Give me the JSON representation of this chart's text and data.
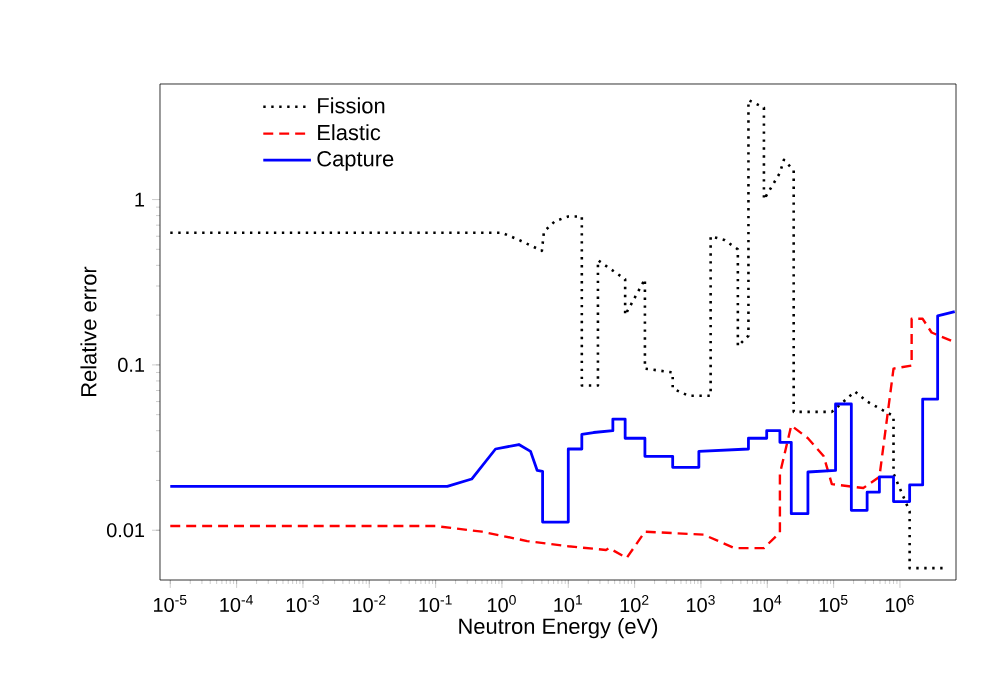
{
  "chart_data": {
    "type": "line",
    "xlabel": "Neutron Energy (eV)",
    "ylabel": "Relative error",
    "log": "xy",
    "legend": "top left",
    "grid": false,
    "marker": "none",
    "xlim": [
      7e-06,
      7000000.0
    ],
    "ylim": [
      0.005,
      5
    ],
    "xticks": [
      {
        "value": 1e-05,
        "label": "10$^{-5}$"
      },
      {
        "value": 0.0001,
        "label": "10$^{-4}$"
      },
      {
        "value": 0.001,
        "label": "10$^{-3}$"
      },
      {
        "value": 0.01,
        "label": "10$^{-2}$"
      },
      {
        "value": 0.1,
        "label": "10$^{-1}$"
      },
      {
        "value": 1,
        "label": "10$^{0}$"
      },
      {
        "value": 10,
        "label": "10$^{1}$"
      },
      {
        "value": 100,
        "label": "10$^{2}$"
      },
      {
        "value": 1000,
        "label": "10$^{3}$"
      },
      {
        "value": 10000,
        "label": "10$^{4}$"
      },
      {
        "value": 100000,
        "label": "10$^{5}$"
      },
      {
        "value": 1000000,
        "label": "10$^{6}$"
      }
    ],
    "yticks": [
      0.01,
      0.1,
      1
    ],
    "series": [
      {
        "name": "Fission",
        "color": "#000000",
        "line_style": "dotted",
        "x": [
          1e-05,
          1,
          1.8,
          4,
          4.3,
          6.3,
          10,
          16,
          16,
          28,
          28,
          36,
          72,
          72,
          143,
          143,
          375,
          375,
          650,
          1400,
          1400,
          2250,
          3600,
          3600,
          5200,
          5200,
          8900,
          8900,
          15500,
          17800,
          25000,
          25000,
          94000,
          210000,
          320000,
          800000,
          800000,
          1400000,
          1400000,
          5100000
        ],
        "values": [
          0.63,
          0.63,
          0.57,
          0.49,
          0.64,
          0.74,
          0.79,
          0.79,
          0.075,
          0.075,
          0.43,
          0.4,
          0.33,
          0.2,
          0.33,
          0.095,
          0.09,
          0.072,
          0.065,
          0.065,
          0.6,
          0.57,
          0.5,
          0.13,
          0.15,
          4.0,
          3.6,
          1.0,
          1.45,
          1.74,
          1.5,
          0.052,
          0.052,
          0.069,
          0.06,
          0.049,
          0.022,
          0.013,
          0.0059,
          0.0059
        ]
      },
      {
        "name": "Elastic",
        "color": "#ff0000",
        "line_style": "dashed",
        "x": [
          1e-05,
          0.1,
          0.5,
          2.4,
          10,
          37,
          41,
          76,
          143,
          1100,
          3200,
          8900,
          15500,
          15500,
          23000,
          41000,
          71000,
          94000,
          280000,
          490000,
          800000,
          1500000,
          1500000,
          2200000,
          3000000,
          6800000
        ],
        "values": [
          0.0106,
          0.0106,
          0.0098,
          0.0086,
          0.008,
          0.0076,
          0.0078,
          0.0068,
          0.0098,
          0.0094,
          0.0078,
          0.0078,
          0.0097,
          0.022,
          0.043,
          0.036,
          0.028,
          0.019,
          0.018,
          0.021,
          0.095,
          0.099,
          0.19,
          0.19,
          0.157,
          0.137
        ]
      },
      {
        "name": "Capture",
        "color": "#0000ff",
        "line_style": "solid",
        "x": [
          1e-05,
          0.15,
          0.35,
          0.8,
          1.8,
          2.7,
          3.4,
          4.1,
          4.1,
          10,
          10,
          16,
          16,
          24,
          47,
          47,
          72,
          72,
          143,
          143,
          375,
          375,
          930,
          930,
          5200,
          5200,
          9800,
          9800,
          15500,
          15500,
          23000,
          23000,
          41000,
          41000,
          107000,
          107000,
          185000,
          185000,
          320000,
          320000,
          490000,
          490000,
          800000,
          800000,
          1400000,
          1400000,
          2200000,
          2200000,
          3700000,
          3700000,
          6700000
        ],
        "values": [
          0.0184,
          0.0184,
          0.0204,
          0.031,
          0.033,
          0.03,
          0.023,
          0.0227,
          0.0112,
          0.0112,
          0.031,
          0.031,
          0.038,
          0.039,
          0.04,
          0.047,
          0.047,
          0.036,
          0.036,
          0.028,
          0.028,
          0.024,
          0.024,
          0.03,
          0.031,
          0.036,
          0.036,
          0.04,
          0.04,
          0.034,
          0.034,
          0.0126,
          0.0126,
          0.0225,
          0.023,
          0.058,
          0.058,
          0.0132,
          0.0132,
          0.017,
          0.017,
          0.021,
          0.021,
          0.0149,
          0.0149,
          0.0188,
          0.0188,
          0.062,
          0.062,
          0.198,
          0.21
        ]
      }
    ]
  }
}
